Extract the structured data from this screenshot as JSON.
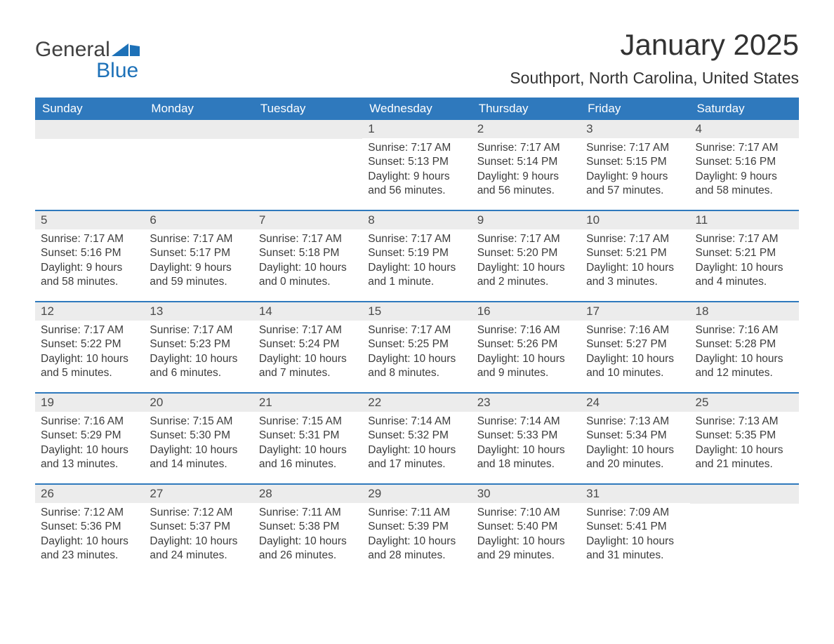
{
  "brand": {
    "word1": "General",
    "word2": "Blue",
    "brand_color": "#1d71b8"
  },
  "title": "January 2025",
  "location": "Southport, North Carolina, United States",
  "colors": {
    "header_bg": "#2f79bd",
    "header_text": "#ffffff",
    "daynum_bg": "#ececec",
    "text": "#333333",
    "page_bg": "#ffffff"
  },
  "calendar": {
    "type": "table",
    "columns": [
      "Sunday",
      "Monday",
      "Tuesday",
      "Wednesday",
      "Thursday",
      "Friday",
      "Saturday"
    ],
    "weeks": [
      [
        null,
        null,
        null,
        {
          "n": "1",
          "sunrise": "7:17 AM",
          "sunset": "5:13 PM",
          "daylight": "9 hours and 56 minutes."
        },
        {
          "n": "2",
          "sunrise": "7:17 AM",
          "sunset": "5:14 PM",
          "daylight": "9 hours and 56 minutes."
        },
        {
          "n": "3",
          "sunrise": "7:17 AM",
          "sunset": "5:15 PM",
          "daylight": "9 hours and 57 minutes."
        },
        {
          "n": "4",
          "sunrise": "7:17 AM",
          "sunset": "5:16 PM",
          "daylight": "9 hours and 58 minutes."
        }
      ],
      [
        {
          "n": "5",
          "sunrise": "7:17 AM",
          "sunset": "5:16 PM",
          "daylight": "9 hours and 58 minutes."
        },
        {
          "n": "6",
          "sunrise": "7:17 AM",
          "sunset": "5:17 PM",
          "daylight": "9 hours and 59 minutes."
        },
        {
          "n": "7",
          "sunrise": "7:17 AM",
          "sunset": "5:18 PM",
          "daylight": "10 hours and 0 minutes."
        },
        {
          "n": "8",
          "sunrise": "7:17 AM",
          "sunset": "5:19 PM",
          "daylight": "10 hours and 1 minute."
        },
        {
          "n": "9",
          "sunrise": "7:17 AM",
          "sunset": "5:20 PM",
          "daylight": "10 hours and 2 minutes."
        },
        {
          "n": "10",
          "sunrise": "7:17 AM",
          "sunset": "5:21 PM",
          "daylight": "10 hours and 3 minutes."
        },
        {
          "n": "11",
          "sunrise": "7:17 AM",
          "sunset": "5:21 PM",
          "daylight": "10 hours and 4 minutes."
        }
      ],
      [
        {
          "n": "12",
          "sunrise": "7:17 AM",
          "sunset": "5:22 PM",
          "daylight": "10 hours and 5 minutes."
        },
        {
          "n": "13",
          "sunrise": "7:17 AM",
          "sunset": "5:23 PM",
          "daylight": "10 hours and 6 minutes."
        },
        {
          "n": "14",
          "sunrise": "7:17 AM",
          "sunset": "5:24 PM",
          "daylight": "10 hours and 7 minutes."
        },
        {
          "n": "15",
          "sunrise": "7:17 AM",
          "sunset": "5:25 PM",
          "daylight": "10 hours and 8 minutes."
        },
        {
          "n": "16",
          "sunrise": "7:16 AM",
          "sunset": "5:26 PM",
          "daylight": "10 hours and 9 minutes."
        },
        {
          "n": "17",
          "sunrise": "7:16 AM",
          "sunset": "5:27 PM",
          "daylight": "10 hours and 10 minutes."
        },
        {
          "n": "18",
          "sunrise": "7:16 AM",
          "sunset": "5:28 PM",
          "daylight": "10 hours and 12 minutes."
        }
      ],
      [
        {
          "n": "19",
          "sunrise": "7:16 AM",
          "sunset": "5:29 PM",
          "daylight": "10 hours and 13 minutes."
        },
        {
          "n": "20",
          "sunrise": "7:15 AM",
          "sunset": "5:30 PM",
          "daylight": "10 hours and 14 minutes."
        },
        {
          "n": "21",
          "sunrise": "7:15 AM",
          "sunset": "5:31 PM",
          "daylight": "10 hours and 16 minutes."
        },
        {
          "n": "22",
          "sunrise": "7:14 AM",
          "sunset": "5:32 PM",
          "daylight": "10 hours and 17 minutes."
        },
        {
          "n": "23",
          "sunrise": "7:14 AM",
          "sunset": "5:33 PM",
          "daylight": "10 hours and 18 minutes."
        },
        {
          "n": "24",
          "sunrise": "7:13 AM",
          "sunset": "5:34 PM",
          "daylight": "10 hours and 20 minutes."
        },
        {
          "n": "25",
          "sunrise": "7:13 AM",
          "sunset": "5:35 PM",
          "daylight": "10 hours and 21 minutes."
        }
      ],
      [
        {
          "n": "26",
          "sunrise": "7:12 AM",
          "sunset": "5:36 PM",
          "daylight": "10 hours and 23 minutes."
        },
        {
          "n": "27",
          "sunrise": "7:12 AM",
          "sunset": "5:37 PM",
          "daylight": "10 hours and 24 minutes."
        },
        {
          "n": "28",
          "sunrise": "7:11 AM",
          "sunset": "5:38 PM",
          "daylight": "10 hours and 26 minutes."
        },
        {
          "n": "29",
          "sunrise": "7:11 AM",
          "sunset": "5:39 PM",
          "daylight": "10 hours and 28 minutes."
        },
        {
          "n": "30",
          "sunrise": "7:10 AM",
          "sunset": "5:40 PM",
          "daylight": "10 hours and 29 minutes."
        },
        {
          "n": "31",
          "sunrise": "7:09 AM",
          "sunset": "5:41 PM",
          "daylight": "10 hours and 31 minutes."
        },
        null
      ]
    ],
    "labels": {
      "sunrise": "Sunrise:",
      "sunset": "Sunset:",
      "daylight": "Daylight:"
    }
  }
}
